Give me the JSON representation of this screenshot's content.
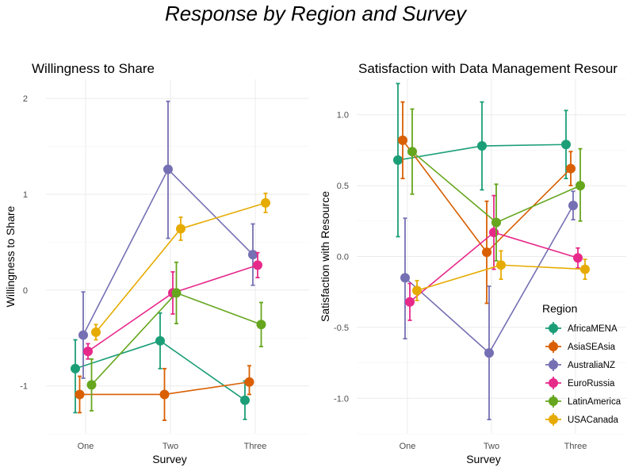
{
  "title": "Response by Region and Survey",
  "legend": {
    "title": "Region",
    "placement": "right",
    "items": [
      {
        "name": "AfricaMENA",
        "color": "#1b9e77"
      },
      {
        "name": "AsiaSEAsia",
        "color": "#d95f02"
      },
      {
        "name": "AustraliaNZ",
        "color": "#7570b3"
      },
      {
        "name": "EuroRussia",
        "color": "#e7298a"
      },
      {
        "name": "LatinAmerica",
        "color": "#66a61e"
      },
      {
        "name": "USACanada",
        "color": "#e6ab02"
      }
    ]
  },
  "chart_data": [
    {
      "type": "line",
      "title": "Willingness to Share",
      "xlabel": "Survey",
      "ylabel": "Willingness to Share",
      "categories": [
        "One",
        "Two",
        "Three"
      ],
      "ylim": [
        -1.5,
        2.2
      ],
      "yticks": [
        -1,
        0,
        1,
        2
      ],
      "grid": true,
      "error_bars": true,
      "series": [
        {
          "name": "AfricaMENA",
          "values": [
            -0.82,
            -0.53,
            -1.15
          ],
          "lower": [
            -1.28,
            -0.82,
            -1.35
          ],
          "upper": [
            -0.52,
            -0.24,
            -0.95
          ]
        },
        {
          "name": "AsiaSEAsia",
          "values": [
            -1.09,
            -1.09,
            -0.96
          ],
          "lower": [
            -1.28,
            -1.36,
            -1.09
          ],
          "upper": [
            -0.9,
            -0.82,
            -0.79
          ]
        },
        {
          "name": "AustraliaNZ",
          "values": [
            -0.47,
            1.26,
            0.37
          ],
          "lower": [
            -0.92,
            0.54,
            0.05
          ],
          "upper": [
            -0.02,
            1.97,
            0.69
          ]
        },
        {
          "name": "EuroRussia",
          "values": [
            -0.64,
            -0.03,
            0.26
          ],
          "lower": [
            -0.72,
            -0.25,
            0.13
          ],
          "upper": [
            -0.56,
            0.19,
            0.39
          ]
        },
        {
          "name": "LatinAmerica",
          "values": [
            -0.99,
            -0.03,
            -0.36
          ],
          "lower": [
            -1.26,
            -0.35,
            -0.59
          ],
          "upper": [
            -0.72,
            0.29,
            -0.13
          ]
        },
        {
          "name": "USACanada",
          "values": [
            -0.44,
            0.64,
            0.91
          ],
          "lower": [
            -0.52,
            0.52,
            0.81
          ],
          "upper": [
            -0.36,
            0.76,
            1.01
          ]
        }
      ]
    },
    {
      "type": "line",
      "title": "Satisfaction with Data Management Resour",
      "xlabel": "Survey",
      "ylabel": "Satisfaction with Resource",
      "categories": [
        "One",
        "Two",
        "Three"
      ],
      "ylim": [
        -1.25,
        1.25
      ],
      "yticks": [
        -1.0,
        -0.5,
        0.0,
        0.5,
        1.0
      ],
      "ytick_labels": [
        "-1.0",
        "-0.5",
        "0.0",
        "0.5",
        "1.0"
      ],
      "grid": true,
      "error_bars": true,
      "series": [
        {
          "name": "AfricaMENA",
          "values": [
            0.68,
            0.78,
            0.79
          ],
          "lower": [
            0.14,
            0.47,
            0.55
          ],
          "upper": [
            1.22,
            1.09,
            1.03
          ]
        },
        {
          "name": "AsiaSEAsia",
          "values": [
            0.82,
            0.03,
            0.62
          ],
          "lower": [
            0.55,
            -0.33,
            0.5
          ],
          "upper": [
            1.09,
            0.39,
            0.74
          ]
        },
        {
          "name": "AustraliaNZ",
          "values": [
            -0.15,
            -0.68,
            0.36
          ],
          "lower": [
            -0.58,
            -1.15,
            0.26
          ],
          "upper": [
            0.27,
            -0.21,
            0.46
          ]
        },
        {
          "name": "EuroRussia",
          "values": [
            -0.32,
            0.17,
            -0.01
          ],
          "lower": [
            -0.45,
            -0.09,
            -0.08
          ],
          "upper": [
            -0.19,
            0.43,
            0.06
          ]
        },
        {
          "name": "LatinAmerica",
          "values": [
            0.74,
            0.24,
            0.5
          ],
          "lower": [
            0.44,
            -0.03,
            0.25
          ],
          "upper": [
            1.04,
            0.51,
            0.76
          ]
        },
        {
          "name": "USACanada",
          "values": [
            -0.24,
            -0.06,
            -0.09
          ],
          "lower": [
            -0.31,
            -0.16,
            -0.16
          ],
          "upper": [
            -0.17,
            0.04,
            -0.02
          ]
        }
      ]
    }
  ]
}
